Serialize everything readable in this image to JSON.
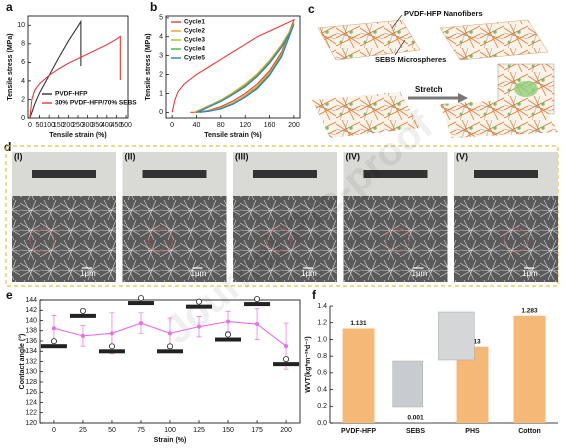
{
  "watermark": "Journal Pre-proof",
  "chart_data": [
    {
      "panel": "a",
      "type": "line",
      "xlabel": "Tensile strain (%)",
      "ylabel": "Tensile stress (MPa)",
      "xlim": [
        -10,
        510
      ],
      "ylim": [
        0,
        11
      ],
      "xticks": [
        0,
        50,
        100,
        150,
        200,
        250,
        300,
        350,
        400,
        450,
        500
      ],
      "yticks": [
        0,
        2,
        4,
        6,
        8,
        10
      ],
      "legend": "lower right",
      "series": [
        {
          "name": "PVDF-HFP",
          "color": "#333333",
          "x": [
            0,
            25,
            50,
            100,
            150,
            200,
            250,
            265,
            265
          ],
          "values": [
            0,
            1.5,
            2.7,
            4.6,
            6.5,
            8.3,
            9.9,
            10.4,
            5.6
          ]
        },
        {
          "name": "30% PVDF-HFP/70% SEBS",
          "color": "#e8393a",
          "x": [
            0,
            10,
            25,
            50,
            100,
            150,
            200,
            250,
            300,
            350,
            400,
            450,
            470,
            470
          ],
          "values": [
            0,
            2.0,
            3.0,
            3.7,
            4.6,
            5.3,
            5.9,
            6.4,
            6.9,
            7.4,
            7.9,
            8.5,
            8.8,
            4.1
          ]
        }
      ]
    },
    {
      "panel": "b",
      "type": "line",
      "xlabel": "Tensile strain (%)",
      "ylabel": "Tensile stress (MPa)",
      "xlim": [
        -10,
        210
      ],
      "ylim": [
        -0.3,
        5.1
      ],
      "xticks": [
        0,
        40,
        80,
        120,
        160,
        200
      ],
      "yticks": [
        0,
        1,
        2,
        3,
        4,
        5
      ],
      "legend": "upper left",
      "series": [
        {
          "name": "Cycle1",
          "color": "#e8393a",
          "x": [
            0,
            5,
            10,
            20,
            40,
            60,
            80,
            100,
            120,
            140,
            160,
            180,
            200,
            180,
            160,
            140,
            120,
            100,
            80,
            60,
            40,
            30
          ],
          "values": [
            0,
            0.7,
            1.1,
            1.5,
            2.0,
            2.4,
            2.8,
            3.2,
            3.6,
            4.0,
            4.3,
            4.6,
            4.9,
            3.2,
            2.2,
            1.5,
            1.0,
            0.6,
            0.3,
            0.1,
            0,
            0
          ]
        },
        {
          "name": "Cycle2",
          "color": "#f39c2b",
          "x": [
            36,
            60,
            80,
            100,
            120,
            140,
            160,
            180,
            195,
            200,
            180,
            160,
            140,
            120,
            100,
            80,
            60,
            40
          ],
          "values": [
            0,
            0.35,
            0.65,
            1.05,
            1.5,
            2.05,
            2.75,
            3.6,
            4.4,
            4.8,
            3.1,
            2.1,
            1.4,
            0.9,
            0.5,
            0.25,
            0.08,
            0
          ]
        },
        {
          "name": "Cycle3",
          "color": "#b5b52a",
          "x": [
            38,
            60,
            80,
            100,
            120,
            140,
            160,
            180,
            195,
            200,
            180,
            160,
            140,
            120,
            100,
            80,
            60,
            42
          ],
          "values": [
            0,
            0.32,
            0.62,
            1.0,
            1.45,
            2.0,
            2.7,
            3.55,
            4.35,
            4.75,
            3.05,
            2.05,
            1.35,
            0.85,
            0.48,
            0.22,
            0.07,
            0
          ]
        },
        {
          "name": "Cycle4",
          "color": "#3cb44b",
          "x": [
            40,
            60,
            80,
            100,
            120,
            140,
            160,
            180,
            195,
            200,
            180,
            160,
            140,
            120,
            100,
            80,
            60,
            44
          ],
          "values": [
            0,
            0.3,
            0.6,
            0.97,
            1.4,
            1.95,
            2.65,
            3.5,
            4.3,
            4.7,
            3.0,
            2.0,
            1.3,
            0.82,
            0.45,
            0.2,
            0.06,
            0
          ]
        },
        {
          "name": "Cycle5",
          "color": "#2f7fd0",
          "x": [
            42,
            60,
            80,
            100,
            120,
            140,
            160,
            180,
            195,
            200,
            180,
            160,
            140,
            120,
            100,
            80,
            60,
            46
          ],
          "values": [
            0,
            0.28,
            0.57,
            0.94,
            1.35,
            1.9,
            2.6,
            3.45,
            4.25,
            4.65,
            2.95,
            1.95,
            1.25,
            0.8,
            0.43,
            0.18,
            0.05,
            0
          ]
        }
      ]
    },
    {
      "panel": "e",
      "type": "line",
      "markers": true,
      "xlabel": "Strain (%)",
      "ylabel": "Contact angle (°)",
      "xlim": [
        -12,
        212
      ],
      "ylim": [
        120,
        144
      ],
      "xticks": [
        0,
        25,
        50,
        75,
        100,
        125,
        150,
        175,
        200
      ],
      "yticks": [
        120,
        122,
        124,
        126,
        128,
        130,
        132,
        134,
        136,
        138,
        140,
        142,
        144
      ],
      "x": [
        0,
        25,
        50,
        75,
        100,
        125,
        150,
        175,
        200
      ],
      "series": [
        {
          "color": "#e66ee6",
          "values": [
            138.5,
            137,
            137.5,
            139.5,
            137.5,
            138.8,
            139.8,
            139.3,
            135
          ],
          "errors": [
            2.5,
            2,
            4,
            2,
            3,
            2,
            2,
            3,
            4.5
          ]
        }
      ]
    },
    {
      "panel": "f",
      "type": "bar",
      "ylabel": "WVT(kg*m⁻²*d⁻¹)",
      "ylim": [
        0,
        1.4
      ],
      "yticks": [
        {
          "value": 0,
          "label": "0.0"
        },
        {
          "value": 0.2,
          "label": "0.2"
        },
        {
          "value": 0.4,
          "label": "0.4"
        },
        {
          "value": 0.6,
          "label": "0.6"
        },
        {
          "value": 0.8,
          "label": "0.8"
        },
        {
          "value": 1,
          "label": "1.0"
        },
        {
          "value": 1.2,
          "label": "1.2"
        },
        {
          "value": 1.4,
          "label": "1.4"
        }
      ],
      "categories": [
        "PVDF-HFP",
        "SEBS",
        "PHS",
        "Cotton"
      ],
      "series": [
        {
          "color": "#f6b877",
          "values": [
            1.131,
            0.001,
            0.913,
            1.283
          ]
        }
      ]
    }
  ],
  "schematic": {
    "panel": "c",
    "fibers_label": "PVDF-HFP Nanofibers",
    "spheres_label": "SEBS Microspheres",
    "action": "Stretch"
  },
  "micrographs": {
    "panel": "d",
    "images": [
      "(I)",
      "(II)",
      "(III)",
      "(IV)",
      "(V)"
    ],
    "scale_bar": "1μm"
  }
}
